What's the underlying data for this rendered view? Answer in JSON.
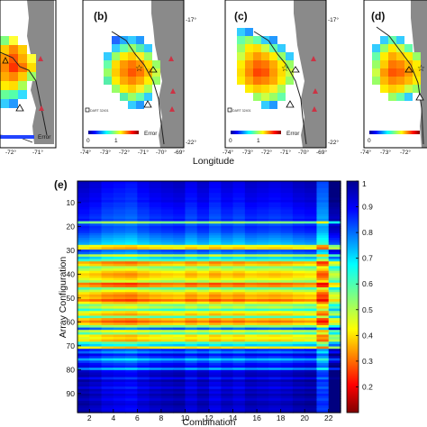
{
  "colors": {
    "land": "#8a8a8a",
    "ocean": "#ffffff",
    "scale": [
      "#7f0000",
      "#ff0000",
      "#ff8000",
      "#ffff00",
      "#80ff80",
      "#00ffff",
      "#0080ff",
      "#0000ff",
      "#00008f"
    ]
  },
  "maps": {
    "xlabel": "Longitude",
    "panels": [
      {
        "label": "",
        "lon_ticks": [
          "-72°",
          "-71°"
        ],
        "colorbar_label": "Error",
        "colorbar_ticks": []
      },
      {
        "label": "(b)",
        "lon_ticks": [
          "-74°",
          "-73°",
          "-72°",
          "-71°",
          "-70°",
          "-69°"
        ],
        "lat_ticks": [
          "-17°",
          "-22°"
        ],
        "colorbar_label": "Error",
        "colorbar_ticks": [
          "0",
          "1"
        ],
        "station": "DART 32401"
      },
      {
        "label": "(c)",
        "lon_ticks": [
          "-74°",
          "-73°",
          "-72°",
          "-71°",
          "-70°",
          "-69°"
        ],
        "lat_ticks": [
          "-17°",
          "-22°"
        ],
        "colorbar_label": "Error",
        "colorbar_ticks": [
          "0",
          "1"
        ],
        "station": "DART 32401"
      },
      {
        "label": "(d)",
        "lon_ticks": [
          "-74°",
          "-73°",
          "-72°"
        ],
        "colorbar_label": "Error",
        "colorbar_ticks": [
          "0"
        ]
      }
    ]
  },
  "chart_data": {
    "type": "heatmap",
    "label": "(e)",
    "xlabel": "Combination",
    "ylabel": "Array Configuration",
    "x_ticks": [
      "2",
      "4",
      "6",
      "8",
      "10",
      "12",
      "14",
      "16",
      "18",
      "20",
      "22"
    ],
    "y_ticks": [
      "10",
      "20",
      "30",
      "40",
      "50",
      "60",
      "70",
      "80",
      "90"
    ],
    "xlim": [
      1,
      23
    ],
    "ylim": [
      1,
      98
    ],
    "colorbar_ticks": [
      "1",
      "0.9",
      "0.8",
      "0.7",
      "0.6",
      "0.5",
      "0.4",
      "0.3",
      "0.2"
    ],
    "color_range": [
      0.1,
      1.0
    ],
    "row_values": [
      0.93,
      0.92,
      0.92,
      0.91,
      0.91,
      0.9,
      0.9,
      0.89,
      0.9,
      0.88,
      0.88,
      0.87,
      0.86,
      0.86,
      0.85,
      0.84,
      0.86,
      0.55,
      0.82,
      0.85,
      0.84,
      0.83,
      0.8,
      0.78,
      0.76,
      0.74,
      0.72,
      0.45,
      0.4,
      0.82,
      0.78,
      0.5,
      0.7,
      0.6,
      0.35,
      0.4,
      0.55,
      0.5,
      0.42,
      0.38,
      0.4,
      0.45,
      0.52,
      0.3,
      0.35,
      0.58,
      0.48,
      0.4,
      0.36,
      0.38,
      0.3,
      0.42,
      0.55,
      0.5,
      0.62,
      0.45,
      0.4,
      0.6,
      0.38,
      0.32,
      0.4,
      0.55,
      0.8,
      0.48,
      0.58,
      0.42,
      0.45,
      0.4,
      0.62,
      0.7,
      0.42,
      0.85,
      0.78,
      0.9,
      0.85,
      0.72,
      0.82,
      0.88,
      0.9,
      0.75,
      0.92,
      0.94,
      0.95,
      0.88,
      0.96,
      0.93,
      0.94,
      0.9,
      0.95,
      0.93,
      0.96,
      0.94,
      0.92,
      0.95,
      0.96,
      0.94,
      0.93,
      0.95
    ],
    "column_offsets": [
      0.02,
      0.0,
      -0.03,
      -0.04,
      -0.05,
      -0.02,
      0.0,
      0.01,
      0.02,
      -0.02,
      0.01,
      -0.03,
      0.0,
      -0.02,
      0.01,
      0.0,
      -0.01,
      0.0,
      0.02,
      0.03,
      -0.1,
      0.1
    ]
  }
}
